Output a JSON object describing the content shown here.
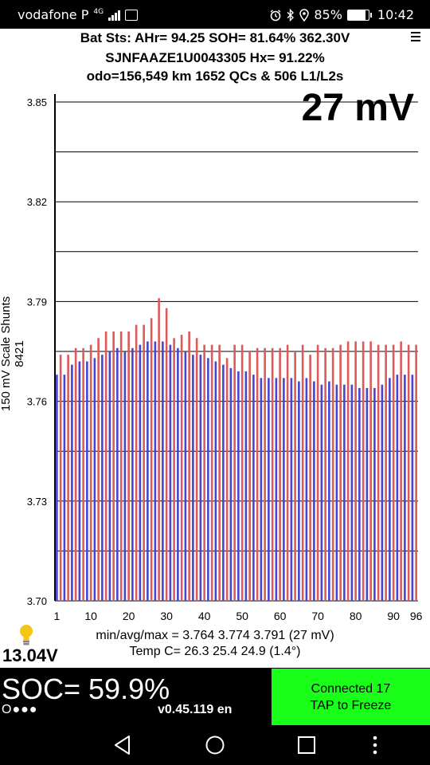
{
  "status_bar": {
    "carrier": "vodafone P",
    "network": "4G",
    "battery_percent": "85%",
    "time": "10:42",
    "battery_level": 0.85
  },
  "header": {
    "line1": "Bat Sts:  AHr= 94.25  SOH= 81.64%   362.30V",
    "line2": "SJNFAAZE1U0043305   Hx= 91.22%",
    "line3": "odo=156,549 km 1652 QCs & 506 L1/L2s"
  },
  "chart_data": {
    "type": "bar",
    "title": "27 mV",
    "ylabel": "150 mV Scale   Shunts 8421",
    "xlabel": "",
    "ylim": [
      3.7,
      3.85
    ],
    "yticks": [
      "3.85",
      "3.82",
      "3.79",
      "3.76",
      "3.73",
      "3.70"
    ],
    "ytick_values": [
      3.85,
      3.82,
      3.79,
      3.76,
      3.73,
      3.7
    ],
    "xticks": [
      "1",
      "10",
      "20",
      "30",
      "40",
      "50",
      "60",
      "70",
      "80",
      "90",
      "96"
    ],
    "xtick_values": [
      1,
      10,
      20,
      30,
      40,
      50,
      60,
      70,
      80,
      90,
      96
    ],
    "grid": true,
    "bar_colors": [
      "#4646d2",
      "#dc5a5a"
    ],
    "x": [
      1,
      2,
      3,
      4,
      5,
      6,
      7,
      8,
      9,
      10,
      11,
      12,
      13,
      14,
      15,
      16,
      17,
      18,
      19,
      20,
      21,
      22,
      23,
      24,
      25,
      26,
      27,
      28,
      29,
      30,
      31,
      32,
      33,
      34,
      35,
      36,
      37,
      38,
      39,
      40,
      41,
      42,
      43,
      44,
      45,
      46,
      47,
      48,
      49,
      50,
      51,
      52,
      53,
      54,
      55,
      56,
      57,
      58,
      59,
      60,
      61,
      62,
      63,
      64,
      65,
      66,
      67,
      68,
      69,
      70,
      71,
      72,
      73,
      74,
      75,
      76,
      77,
      78,
      79,
      80,
      81,
      82,
      83,
      84,
      85,
      86,
      87,
      88,
      89,
      90,
      91,
      92,
      93,
      94,
      95,
      96
    ],
    "values": [
      3.768,
      3.774,
      3.768,
      3.774,
      3.771,
      3.776,
      3.772,
      3.776,
      3.772,
      3.777,
      3.773,
      3.779,
      3.774,
      3.781,
      3.775,
      3.781,
      3.776,
      3.781,
      3.775,
      3.781,
      3.776,
      3.783,
      3.777,
      3.783,
      3.778,
      3.785,
      3.778,
      3.791,
      3.778,
      3.788,
      3.777,
      3.779,
      3.776,
      3.78,
      3.775,
      3.781,
      3.774,
      3.779,
      3.774,
      3.777,
      3.773,
      3.777,
      3.772,
      3.777,
      3.771,
      3.773,
      3.77,
      3.777,
      3.769,
      3.777,
      3.769,
      3.775,
      3.768,
      3.776,
      3.767,
      3.776,
      3.767,
      3.776,
      3.767,
      3.776,
      3.767,
      3.777,
      3.767,
      3.775,
      3.766,
      3.777,
      3.767,
      3.774,
      3.766,
      3.777,
      3.765,
      3.776,
      3.766,
      3.776,
      3.765,
      3.777,
      3.765,
      3.778,
      3.765,
      3.778,
      3.764,
      3.778,
      3.764,
      3.778,
      3.764,
      3.777,
      3.765,
      3.777,
      3.767,
      3.777,
      3.768,
      3.778,
      3.768,
      3.777,
      3.768,
      3.777
    ]
  },
  "stats": {
    "minmax": "min/avg/max = 3.764 3.774 3.791  (27 mV)",
    "temp": "Temp C= 26.3  25.4  24.9  (1.4°)"
  },
  "voltage": "13.04V",
  "soc": "SOC= 59.9%",
  "dots": "O●●●",
  "version": "v0.45.119 en",
  "connect_button": {
    "line1": "Connected 17",
    "line2": "TAP to Freeze",
    "color": "#19ff19"
  },
  "icons": {
    "alarm": "alarm-icon",
    "bluetooth": "bluetooth-icon",
    "location": "location-icon",
    "battery": "battery-icon",
    "bulb": "lightbulb-icon",
    "menu": "menu-icon",
    "back": "back-icon",
    "home": "home-icon",
    "recents": "recents-icon",
    "more": "more-icon"
  }
}
